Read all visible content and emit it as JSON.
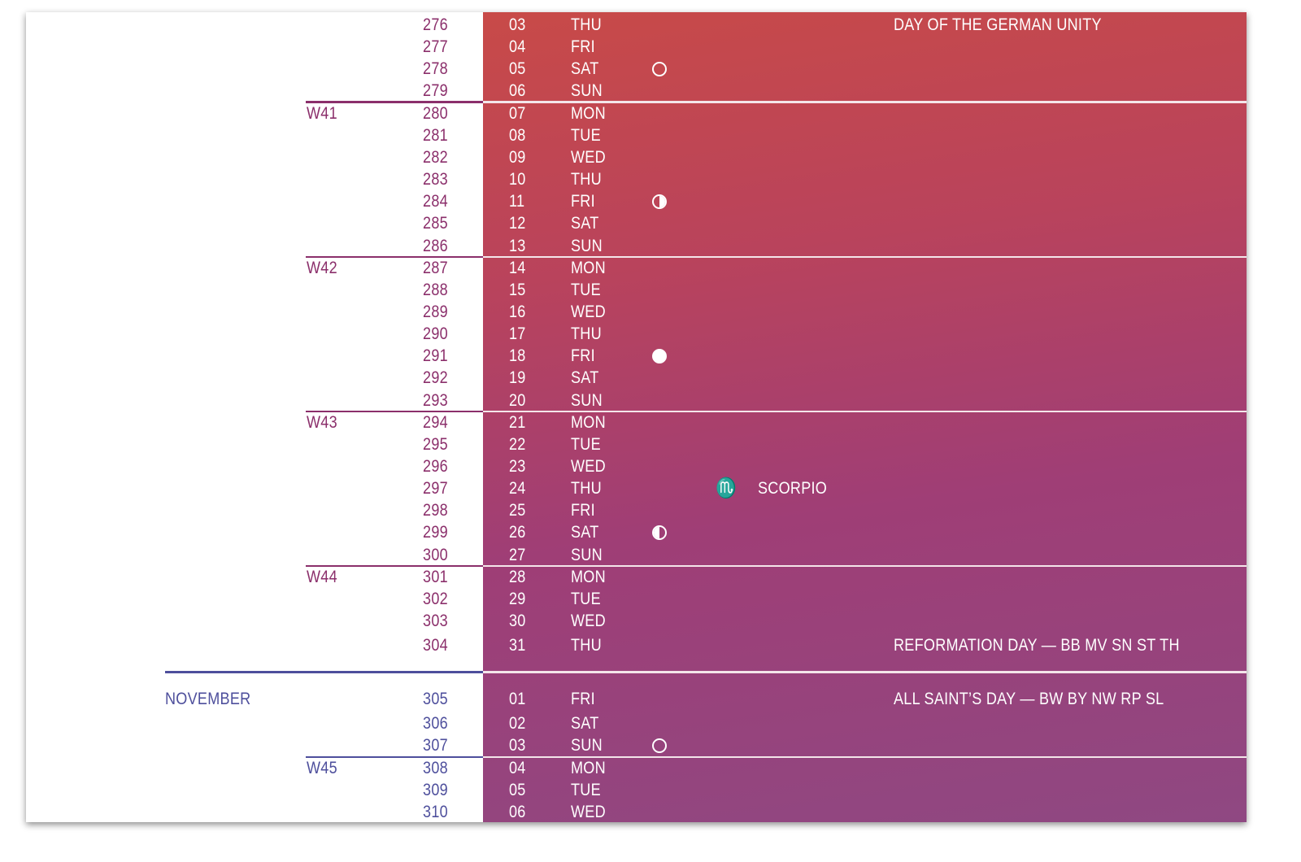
{
  "colors": {
    "october_text": "#8b2f6b",
    "november_text": "#4e4f9c",
    "band_top": "#c84a48",
    "band_bottom": "#8f4882"
  },
  "months": [
    {
      "label": "NOVEMBER",
      "starts_at_doy": "305"
    }
  ],
  "weeks": [
    {
      "label": "W41",
      "starts_at_doy": "280"
    },
    {
      "label": "W42",
      "starts_at_doy": "287"
    },
    {
      "label": "W43",
      "starts_at_doy": "294"
    },
    {
      "label": "W44",
      "starts_at_doy": "301"
    },
    {
      "label": "W45",
      "starts_at_doy": "308"
    }
  ],
  "rows": [
    {
      "doy": "276",
      "day": "03",
      "weekday": "THU",
      "holiday": "DAY OF THE GERMAN UNITY"
    },
    {
      "doy": "277",
      "day": "04",
      "weekday": "FRI"
    },
    {
      "doy": "278",
      "day": "05",
      "weekday": "SAT",
      "moon": "new-moon"
    },
    {
      "doy": "279",
      "day": "06",
      "weekday": "SUN"
    },
    {
      "doy": "280",
      "day": "07",
      "weekday": "MON"
    },
    {
      "doy": "281",
      "day": "08",
      "weekday": "TUE"
    },
    {
      "doy": "282",
      "day": "09",
      "weekday": "WED"
    },
    {
      "doy": "283",
      "day": "10",
      "weekday": "THU"
    },
    {
      "doy": "284",
      "day": "11",
      "weekday": "FRI",
      "moon": "first-quarter"
    },
    {
      "doy": "285",
      "day": "12",
      "weekday": "SAT"
    },
    {
      "doy": "286",
      "day": "13",
      "weekday": "SUN"
    },
    {
      "doy": "287",
      "day": "14",
      "weekday": "MON"
    },
    {
      "doy": "288",
      "day": "15",
      "weekday": "TUE"
    },
    {
      "doy": "289",
      "day": "16",
      "weekday": "WED"
    },
    {
      "doy": "290",
      "day": "17",
      "weekday": "THU"
    },
    {
      "doy": "291",
      "day": "18",
      "weekday": "FRI",
      "moon": "full-moon"
    },
    {
      "doy": "292",
      "day": "19",
      "weekday": "SAT"
    },
    {
      "doy": "293",
      "day": "20",
      "weekday": "SUN"
    },
    {
      "doy": "294",
      "day": "21",
      "weekday": "MON"
    },
    {
      "doy": "295",
      "day": "22",
      "weekday": "TUE"
    },
    {
      "doy": "296",
      "day": "23",
      "weekday": "WED"
    },
    {
      "doy": "297",
      "day": "24",
      "weekday": "THU",
      "zodiac_symbol": "♏",
      "zodiac": "SCORPIO"
    },
    {
      "doy": "298",
      "day": "25",
      "weekday": "FRI"
    },
    {
      "doy": "299",
      "day": "26",
      "weekday": "SAT",
      "moon": "last-quarter"
    },
    {
      "doy": "300",
      "day": "27",
      "weekday": "SUN"
    },
    {
      "doy": "301",
      "day": "28",
      "weekday": "MON"
    },
    {
      "doy": "302",
      "day": "29",
      "weekday": "TUE"
    },
    {
      "doy": "303",
      "day": "30",
      "weekday": "WED"
    },
    {
      "doy": "304",
      "day": "31",
      "weekday": "THU",
      "holiday": "REFORMATION DAY  —  BB  MV  SN  ST  TH"
    },
    {
      "doy": "305",
      "day": "01",
      "weekday": "FRI",
      "holiday": "ALL SAINT’S DAY  —  BW  BY  NW  RP  SL"
    },
    {
      "doy": "306",
      "day": "02",
      "weekday": "SAT"
    },
    {
      "doy": "307",
      "day": "03",
      "weekday": "SUN",
      "moon": "new-moon"
    },
    {
      "doy": "308",
      "day": "04",
      "weekday": "MON"
    },
    {
      "doy": "309",
      "day": "05",
      "weekday": "TUE"
    },
    {
      "doy": "310",
      "day": "06",
      "weekday": "WED"
    }
  ]
}
